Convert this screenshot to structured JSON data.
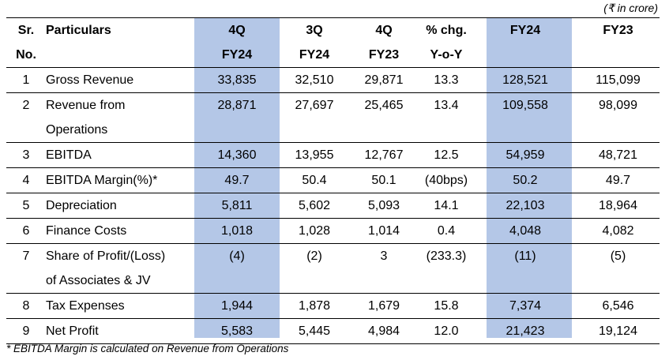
{
  "unit_note": "(₹ in crore)",
  "highlight_color": "#b4c7e7",
  "headers": {
    "sr": [
      "Sr.",
      "No."
    ],
    "particulars": "Particulars",
    "cols": [
      [
        "4Q",
        "FY24"
      ],
      [
        "3Q",
        "FY24"
      ],
      [
        "4Q",
        "FY23"
      ],
      [
        "% chg.",
        "Y-o-Y"
      ],
      [
        "FY24",
        ""
      ],
      [
        "FY23",
        ""
      ]
    ]
  },
  "rows": [
    {
      "sr": "1",
      "label": [
        "Gross Revenue"
      ],
      "values": [
        "33,835",
        "32,510",
        "29,871",
        "13.3",
        "128,521",
        "115,099"
      ]
    },
    {
      "sr": "2",
      "label": [
        "Revenue from",
        "Operations"
      ],
      "values": [
        "28,871",
        "27,697",
        "25,465",
        "13.4",
        "109,558",
        "98,099"
      ]
    },
    {
      "sr": "3",
      "label": [
        "EBITDA"
      ],
      "values": [
        "14,360",
        "13,955",
        "12,767",
        "12.5",
        "54,959",
        "48,721"
      ]
    },
    {
      "sr": "4",
      "label": [
        "EBITDA Margin(%)*"
      ],
      "values": [
        "49.7",
        "50.4",
        "50.1",
        "(40bps)",
        "50.2",
        "49.7"
      ]
    },
    {
      "sr": "5",
      "label": [
        "Depreciation"
      ],
      "values": [
        "5,811",
        "5,602",
        "5,093",
        "14.1",
        "22,103",
        "18,964"
      ]
    },
    {
      "sr": "6",
      "label": [
        "Finance Costs"
      ],
      "values": [
        "1,018",
        "1,028",
        "1,014",
        "0.4",
        "4,048",
        "4,082"
      ]
    },
    {
      "sr": "7",
      "label": [
        "Share of Profit/(Loss)",
        "of Associates & JV"
      ],
      "values": [
        "(4)",
        "(2)",
        "3",
        "(233.3)",
        "(11)",
        "(5)"
      ]
    },
    {
      "sr": "8",
      "label": [
        "Tax Expenses"
      ],
      "values": [
        "1,944",
        "1,878",
        "1,679",
        "15.8",
        "7,374",
        "6,546"
      ]
    },
    {
      "sr": "9",
      "label": [
        "Net Profit"
      ],
      "values": [
        "5,583",
        "5,445",
        "4,984",
        "12.0",
        "21,423",
        "19,124"
      ]
    }
  ],
  "footnote": "* EBITDA Margin is calculated on Revenue from Operations"
}
